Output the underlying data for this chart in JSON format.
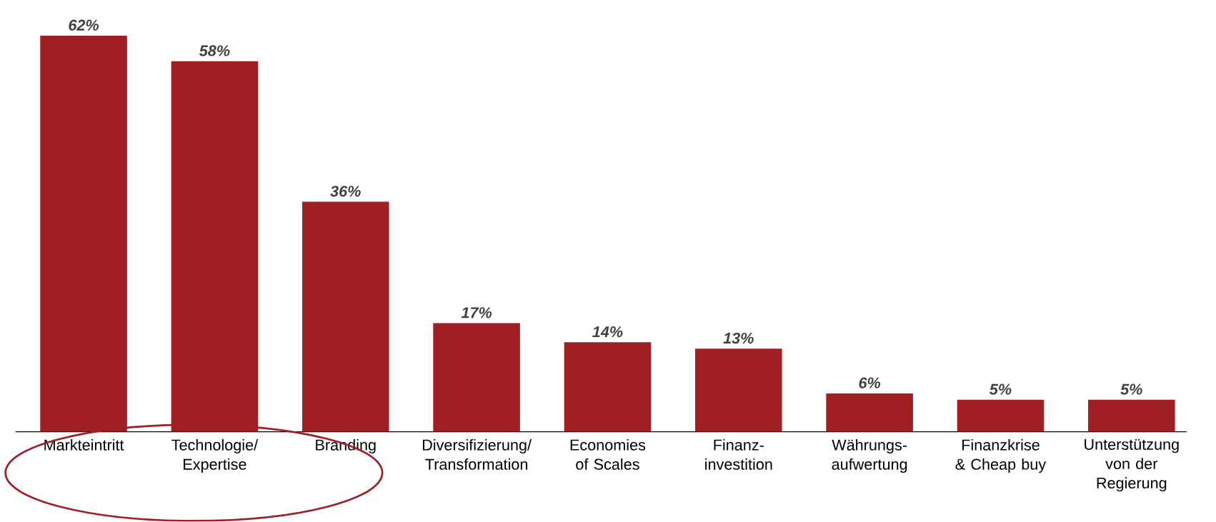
{
  "chart_data": {
    "type": "bar",
    "categories": [
      "Markteintritt",
      "Technologie/ Expertise",
      "Branding",
      "Diversifizierung/ Transformation",
      "Economies of Scales",
      "Finanz-investition",
      "Währungs-aufwertung",
      "Finanzkrise & Cheap buy",
      "Unterstützung von der Regierung"
    ],
    "values": [
      62,
      58,
      36,
      17,
      14,
      13,
      6,
      5,
      5
    ],
    "value_labels": [
      "62%",
      "58%",
      "36%",
      "17%",
      "14%",
      "13%",
      "6%",
      "5%",
      "5%"
    ],
    "color": "#a01f22"
  }
}
